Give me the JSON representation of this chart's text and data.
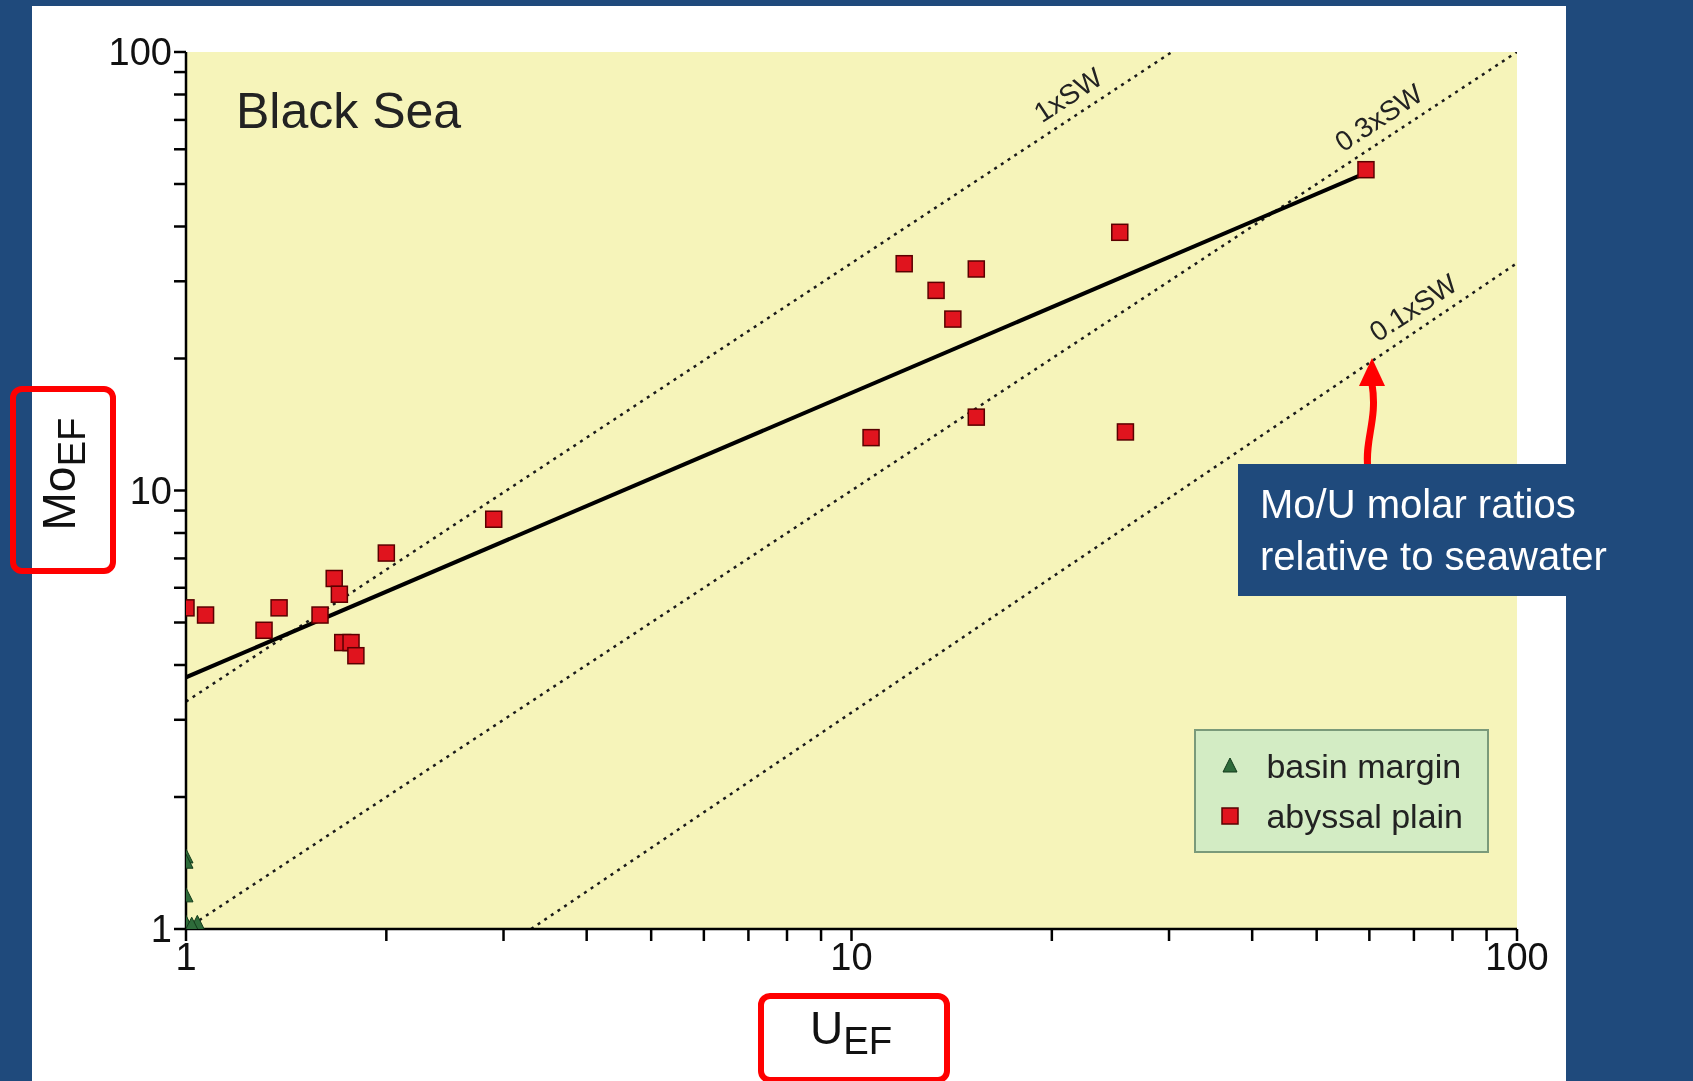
{
  "chart_data": {
    "type": "scatter",
    "title": "Black Sea",
    "xlabel": "U$_{EF}$",
    "ylabel": "Mo$_{EF}$",
    "log": "xy",
    "grid": false,
    "legend": "bottom right",
    "xlim": [
      1,
      100
    ],
    "ylim": [
      1,
      100
    ],
    "xticks": [
      1,
      {
        "value": 2,
        "label": null
      },
      {
        "value": 3,
        "label": null
      },
      {
        "value": 4,
        "label": null
      },
      {
        "value": 5,
        "label": null
      },
      {
        "value": 6,
        "label": null
      },
      {
        "value": 7,
        "label": null
      },
      {
        "value": 8,
        "label": null
      },
      {
        "value": 9,
        "label": null
      },
      10,
      {
        "value": 20,
        "label": null
      },
      {
        "value": 30,
        "label": null
      },
      {
        "value": 40,
        "label": null
      },
      {
        "value": 50,
        "label": null
      },
      {
        "value": 60,
        "label": null
      },
      {
        "value": 70,
        "label": null
      },
      {
        "value": 80,
        "label": null
      },
      {
        "value": 90,
        "label": null
      },
      100
    ],
    "yticks": [
      1,
      {
        "value": 2,
        "label": null
      },
      {
        "value": 3,
        "label": null
      },
      {
        "value": 4,
        "label": null
      },
      {
        "value": 5,
        "label": null
      },
      {
        "value": 6,
        "label": null
      },
      {
        "value": 7,
        "label": null
      },
      {
        "value": 8,
        "label": null
      },
      {
        "value": 9,
        "label": null
      },
      10,
      {
        "value": 20,
        "label": null
      },
      {
        "value": 30,
        "label": null
      },
      {
        "value": 40,
        "label": null
      },
      {
        "value": 50,
        "label": null
      },
      {
        "value": 60,
        "label": null
      },
      {
        "value": 70,
        "label": null
      },
      {
        "value": 80,
        "label": null
      },
      {
        "value": 90,
        "label": null
      },
      100
    ],
    "series": [
      {
        "type": "line",
        "name": "1xSW",
        "color": "#1a1a1a",
        "line_style": "dotted",
        "marker": "none",
        "x": [
          1,
          30.3
        ],
        "values": [
          3.3,
          100
        ]
      },
      {
        "type": "line",
        "name": "0.3xSW",
        "color": "#1a1a1a",
        "line_style": "dotted",
        "marker": "none",
        "x": [
          1,
          100
        ],
        "values": [
          1,
          100
        ]
      },
      {
        "type": "line",
        "name": "0.1xSW",
        "color": "#1a1a1a",
        "line_style": "dotted",
        "marker": "none",
        "x": [
          3.3,
          100
        ],
        "values": [
          1,
          33
        ]
      },
      {
        "type": "line",
        "color": "#000000",
        "line_style": "solid",
        "marker": "none",
        "x": [
          1,
          59.3
        ],
        "values": [
          3.75,
          53
        ]
      },
      {
        "name": "basin margin",
        "color": "#2e6b3a",
        "marker": "triangle",
        "x": [
          1,
          1,
          1,
          1,
          1.04,
          1.02
        ],
        "values": [
          1.46,
          1.42,
          1.19,
          1.03,
          1.03,
          1.02
        ]
      },
      {
        "name": "abyssal plain",
        "color": "#e0141e",
        "marker": "square",
        "x": [
          1,
          1.07,
          1.31,
          1.38,
          1.59,
          1.67,
          1.7,
          1.72,
          1.77,
          1.8,
          2,
          2.9,
          10.7,
          12,
          13.4,
          14.2,
          15.4,
          15.4,
          25.3,
          25.8,
          59.3
        ],
        "values": [
          5.4,
          5.2,
          4.8,
          5.4,
          5.2,
          6.3,
          5.8,
          4.5,
          4.5,
          4.2,
          7.2,
          8.6,
          13.2,
          32.9,
          28.6,
          24.6,
          32,
          14.7,
          38.8,
          13.6,
          53.9
        ]
      }
    ],
    "annotations": [
      "Mo/U molar ratios relative to seawater"
    ]
  }
}
